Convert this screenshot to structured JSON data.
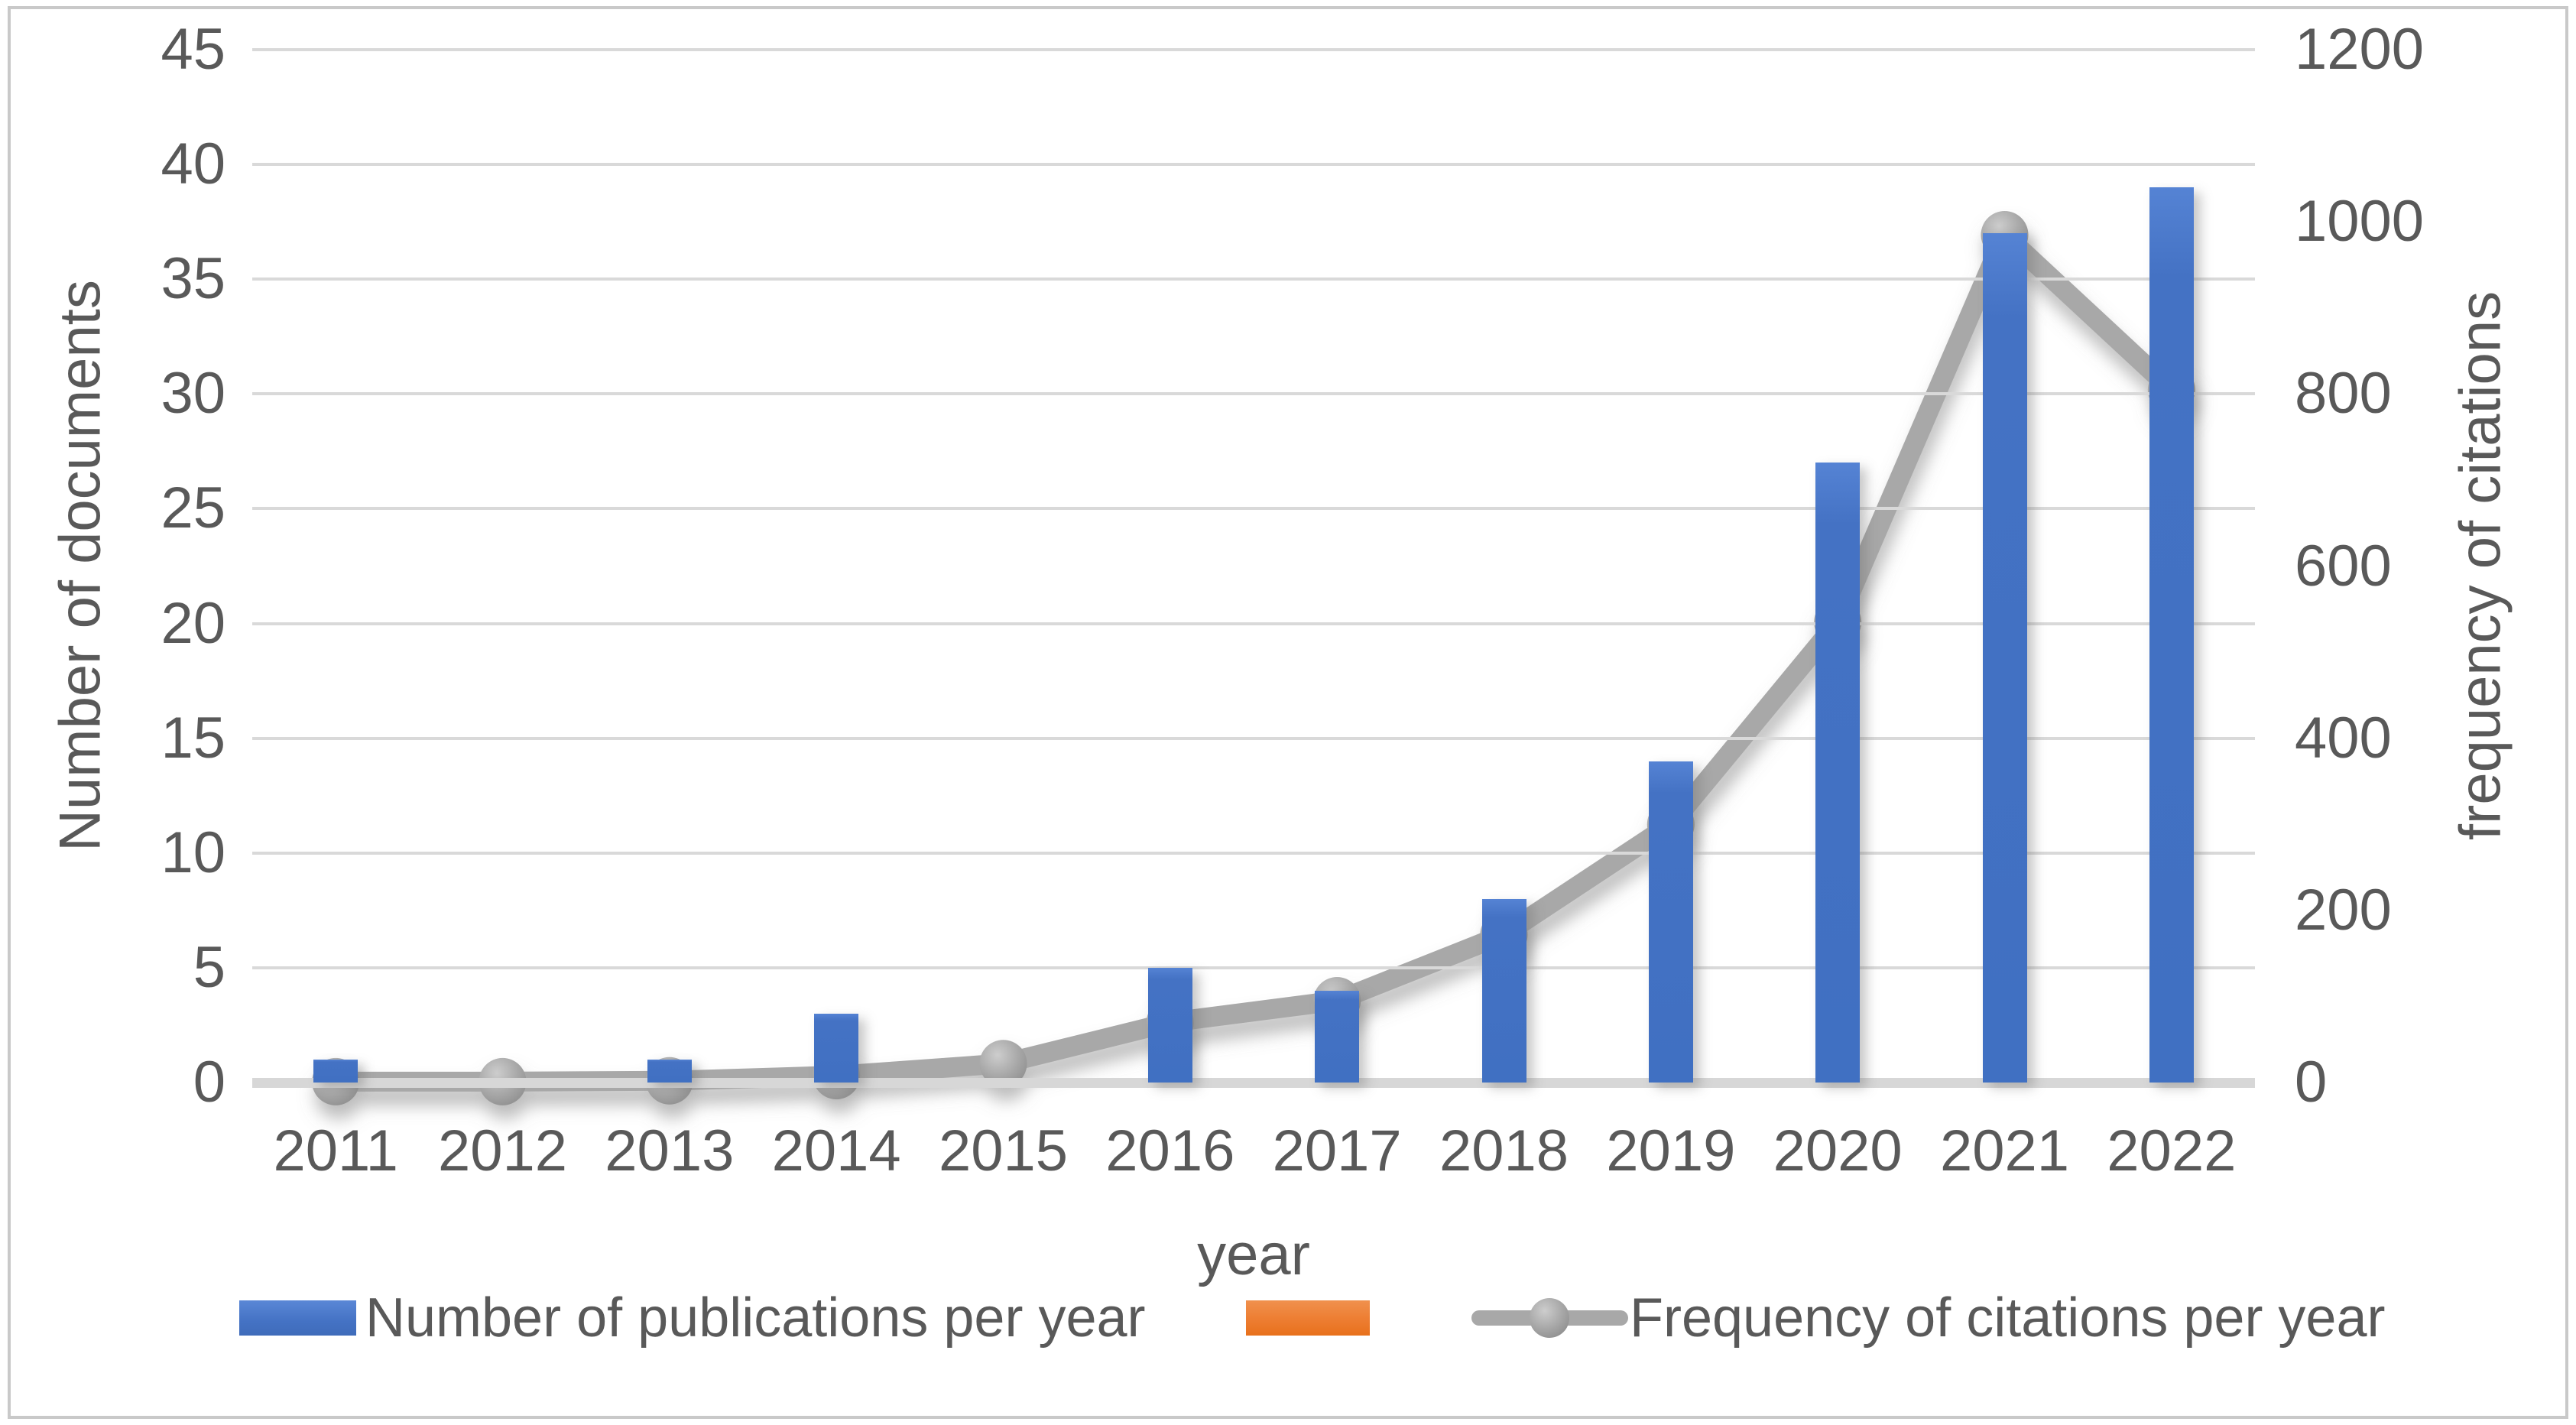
{
  "chart_data": {
    "type": "combo bar+line, dual axis",
    "categories": [
      "2011",
      "2012",
      "2013",
      "2014",
      "2015",
      "2016",
      "2017",
      "2018",
      "2019",
      "2020",
      "2021",
      "2022"
    ],
    "series": [
      {
        "name": "Number of publications per year",
        "type": "bar",
        "axis": "left",
        "color": "#4472C4",
        "values": [
          1,
          0,
          1,
          3,
          0,
          5,
          4,
          8,
          14,
          27,
          37,
          39
        ]
      },
      {
        "name": "",
        "type": "bar",
        "axis": "left",
        "color": "#ED7D31",
        "values": [
          0,
          0,
          0,
          0,
          0,
          0,
          0,
          0,
          0,
          0,
          0,
          0
        ]
      },
      {
        "name": "Frequency of citations per year",
        "type": "line",
        "axis": "right",
        "color": "#A8A8A8",
        "values": [
          1,
          1,
          2,
          8,
          22,
          70,
          95,
          172,
          300,
          535,
          985,
          805
        ]
      }
    ],
    "x_axis": {
      "title": "year"
    },
    "left_axis": {
      "title": "Number of documents",
      "min": 0,
      "max": 45,
      "ticks": [
        0,
        5,
        10,
        15,
        20,
        25,
        30,
        35,
        40,
        45
      ]
    },
    "right_axis": {
      "title": "frequency of citations",
      "min": 0,
      "max": 1200,
      "ticks": [
        0,
        200,
        400,
        600,
        800,
        1000,
        1200
      ]
    },
    "grid": true,
    "legend_position": "bottom"
  },
  "colors": {
    "bar_blue": "#4472C4",
    "legend_orange": "#ED7D31",
    "line_gray": "#A8A8A8",
    "text_gray": "#595959",
    "gridline_gray": "#D9D9D9",
    "frame_gray": "#C9C9C9"
  }
}
